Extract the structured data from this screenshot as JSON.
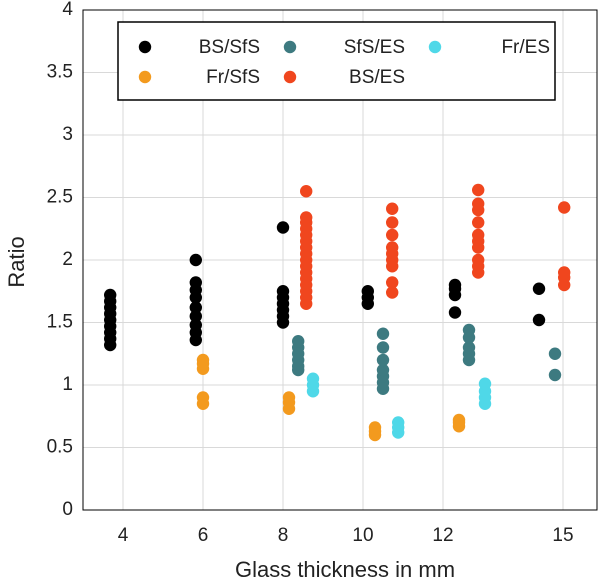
{
  "chart_data": {
    "type": "scatter",
    "xlabel": "Glass thickness in mm",
    "ylabel": "Ratio",
    "xlim": [
      3,
      15.85
    ],
    "xticks": [
      4,
      6,
      8,
      10,
      12,
      15
    ],
    "ylim": [
      0,
      4
    ],
    "yticks": [
      0,
      0.5,
      1,
      1.5,
      2,
      2.5,
      3,
      3.5,
      4
    ],
    "grid": true,
    "legend": "top",
    "series": [
      {
        "name": "BS/SfS",
        "color": "#000000",
        "x": [
          3.68,
          3.68,
          3.68,
          3.68,
          3.68,
          3.68,
          3.68,
          3.68,
          3.68,
          5.82,
          5.82,
          5.82,
          5.82,
          5.82,
          5.82,
          5.82,
          5.82,
          5.82,
          8,
          8,
          8,
          8,
          8,
          8,
          8,
          10.12,
          10.12,
          10.12,
          12.3,
          12.3,
          12.3,
          12.3,
          14.4,
          14.4
        ],
        "values": [
          1.32,
          1.37,
          1.42,
          1.47,
          1.52,
          1.57,
          1.62,
          1.67,
          1.72,
          1.36,
          1.42,
          1.48,
          1.55,
          1.62,
          1.7,
          1.76,
          1.82,
          2.0,
          1.5,
          1.55,
          1.6,
          1.65,
          1.7,
          1.75,
          2.26,
          1.65,
          1.7,
          1.75,
          1.58,
          1.72,
          1.77,
          1.8,
          1.52,
          1.77
        ]
      },
      {
        "name": "Fr/SfS",
        "color": "#f39a1e",
        "x": [
          6.0,
          6.0,
          6.0,
          6.0,
          6.0,
          8.15,
          8.15,
          8.15,
          10.3,
          10.3,
          10.3,
          12.4,
          12.4,
          12.4
        ],
        "values": [
          0.85,
          0.9,
          1.13,
          1.17,
          1.2,
          0.81,
          0.86,
          0.9,
          0.6,
          0.63,
          0.66,
          0.67,
          0.7,
          0.72
        ]
      },
      {
        "name": "SfS/ES",
        "color": "#3d7a80",
        "x": [
          8.38,
          8.38,
          8.38,
          8.38,
          8.38,
          8.38,
          10.5,
          10.5,
          10.5,
          10.5,
          10.5,
          10.5,
          10.5,
          12.65,
          12.65,
          12.65,
          12.65,
          12.65,
          14.8,
          14.8
        ],
        "values": [
          1.12,
          1.15,
          1.2,
          1.25,
          1.3,
          1.35,
          0.97,
          1.02,
          1.07,
          1.12,
          1.2,
          1.3,
          1.41,
          1.2,
          1.25,
          1.3,
          1.38,
          1.44,
          1.08,
          1.25
        ]
      },
      {
        "name": "BS/ES",
        "color": "#f0461e",
        "x": [
          8.58,
          8.58,
          8.58,
          8.58,
          8.58,
          8.58,
          8.58,
          8.58,
          8.58,
          8.58,
          8.58,
          8.58,
          8.58,
          8.58,
          8.58,
          8.58,
          10.73,
          10.73,
          10.73,
          10.73,
          10.73,
          10.73,
          10.73,
          10.73,
          10.73,
          12.88,
          12.88,
          12.88,
          12.88,
          12.88,
          12.88,
          12.88,
          12.88,
          12.88,
          12.88,
          15.03,
          15.03,
          15.03,
          15.03
        ],
        "values": [
          1.65,
          1.7,
          1.75,
          1.8,
          1.85,
          1.9,
          1.95,
          2.0,
          2.05,
          2.1,
          2.15,
          2.2,
          2.25,
          2.3,
          2.34,
          2.55,
          1.74,
          1.82,
          1.95,
          2.0,
          2.05,
          2.1,
          2.2,
          2.3,
          2.41,
          1.9,
          1.95,
          2.0,
          2.1,
          2.15,
          2.2,
          2.3,
          2.4,
          2.45,
          2.56,
          1.8,
          1.86,
          1.9,
          2.42
        ]
      },
      {
        "name": "Fr/ES",
        "color": "#4fd8e8",
        "x": [
          8.75,
          8.75,
          8.75,
          10.88,
          10.88,
          10.88,
          13.05,
          13.05,
          13.05,
          13.05
        ],
        "values": [
          0.95,
          1.0,
          1.05,
          0.62,
          0.66,
          0.7,
          0.85,
          0.9,
          0.95,
          1.01
        ]
      }
    ]
  }
}
